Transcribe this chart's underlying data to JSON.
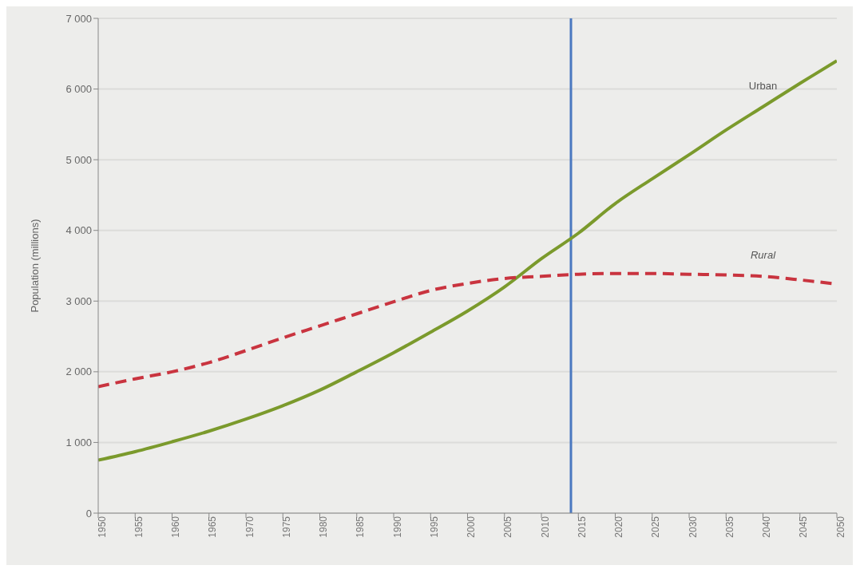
{
  "chart_data": {
    "type": "line",
    "ylabel": "Population (millions)",
    "x": [
      1950,
      1955,
      1960,
      1965,
      1970,
      1975,
      1980,
      1985,
      1990,
      1995,
      2000,
      2005,
      2010,
      2015,
      2020,
      2025,
      2030,
      2035,
      2040,
      2045,
      2050
    ],
    "series": [
      {
        "name": "Urban",
        "color": "#7b9a2c",
        "line_style": "solid",
        "values": [
          750,
          870,
          1010,
          1160,
          1330,
          1520,
          1740,
          2000,
          2270,
          2560,
          2860,
          3200,
          3600,
          3960,
          4380,
          4730,
          5070,
          5420,
          5750,
          6080,
          6400
        ]
      },
      {
        "name": "Rural",
        "color": "#c9343f",
        "line_style": "dashed",
        "values": [
          1790,
          1900,
          2000,
          2130,
          2300,
          2480,
          2650,
          2820,
          2990,
          3150,
          3250,
          3320,
          3350,
          3380,
          3390,
          3390,
          3380,
          3370,
          3350,
          3300,
          3240
        ]
      }
    ],
    "xlim": [
      1950,
      2050
    ],
    "xticks": [
      1950,
      1955,
      1960,
      1965,
      1970,
      1975,
      1980,
      1985,
      1990,
      1995,
      2000,
      2005,
      2010,
      2015,
      2020,
      2025,
      2030,
      2035,
      2040,
      2045,
      2050
    ],
    "ylim": [
      0,
      7000
    ],
    "yticks": [
      {
        "value": 0,
        "label": "0"
      },
      {
        "value": 1000,
        "label": "1 000"
      },
      {
        "value": 2000,
        "label": "2 000"
      },
      {
        "value": 3000,
        "label": "3 000"
      },
      {
        "value": 4000,
        "label": "4 000"
      },
      {
        "value": 5000,
        "label": "5 000"
      },
      {
        "value": 6000,
        "label": "6 000"
      },
      {
        "value": 7000,
        "label": "7 000"
      }
    ],
    "grid": "y",
    "marker": "none",
    "ref_lines": [
      {
        "axis": "x",
        "value": 2014,
        "color": "#4a78c0",
        "line_style": "solid"
      }
    ]
  }
}
